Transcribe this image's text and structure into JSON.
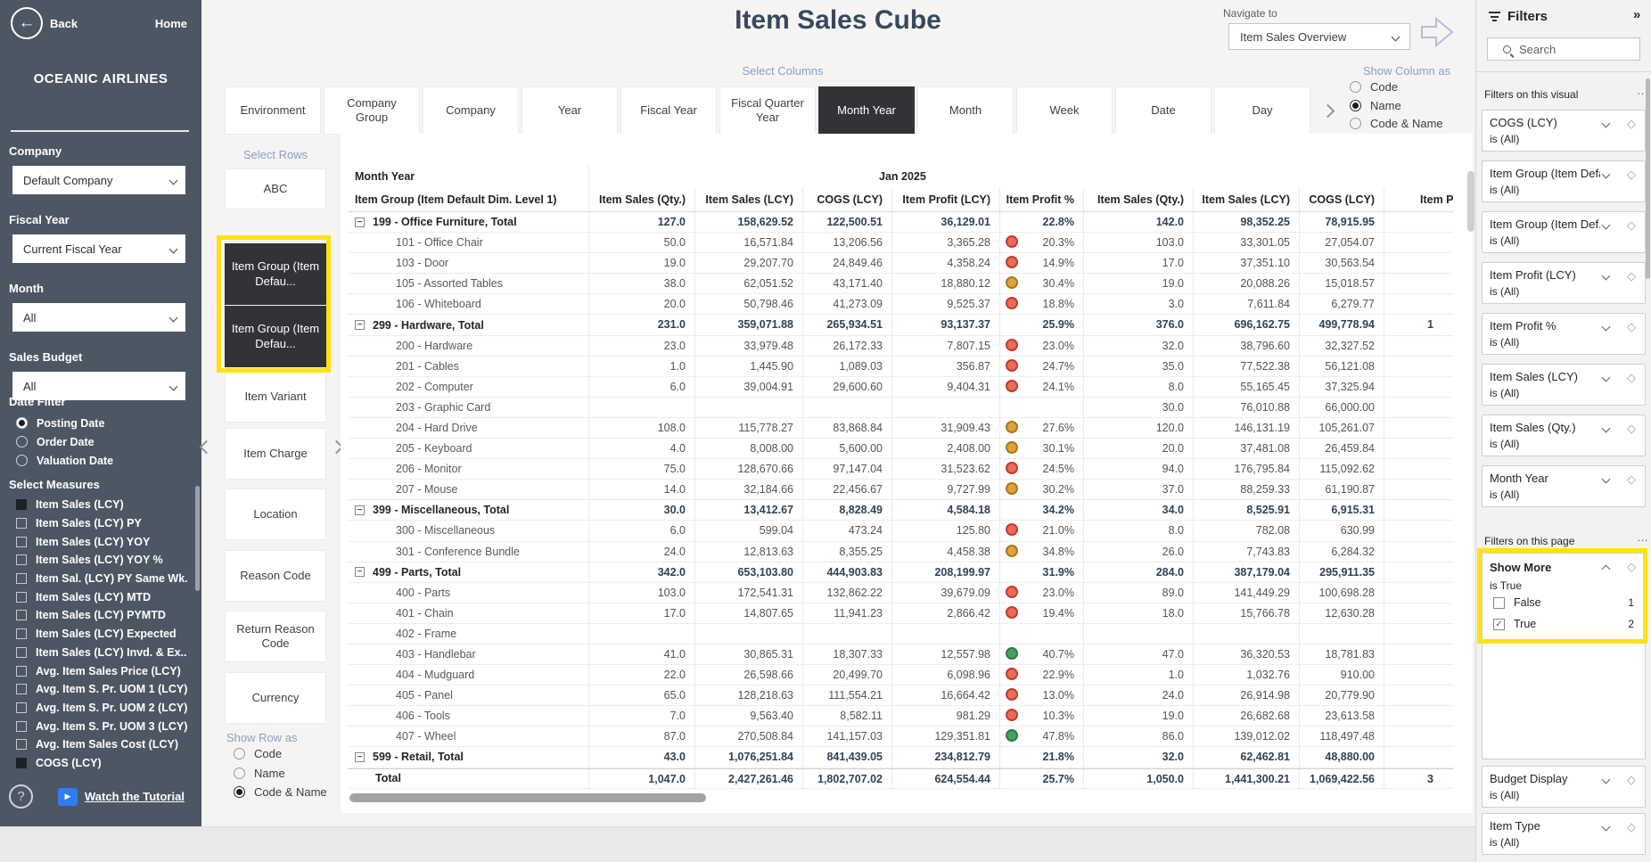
{
  "colors": {
    "sidebar_bg": "#4d5663",
    "selected_tile_bg": "#323336",
    "highlight_yellow": "#ffe115",
    "kpi_red": "#ec6a58",
    "kpi_red_border": "#c23c2b",
    "kpi_amber": "#dfa33d",
    "kpi_amber_border": "#a87a16",
    "kpi_green": "#47a35c",
    "kpi_green_border": "#2e7d43"
  },
  "sidebar": {
    "back_label": "Back",
    "home_label": "Home",
    "company_name": "OCEANIC AIRLINES",
    "filters": [
      {
        "label": "Company",
        "value": "Default Company"
      },
      {
        "label": "Fiscal Year",
        "value": "Current Fiscal Year"
      },
      {
        "label": "Month",
        "value": "All"
      },
      {
        "label": "Sales Budget",
        "value": "All"
      }
    ],
    "date_filter": {
      "label": "Date Filter",
      "options": [
        {
          "label": "Posting Date",
          "selected": true
        },
        {
          "label": "Order Date",
          "selected": false
        },
        {
          "label": "Valuation Date",
          "selected": false
        }
      ]
    },
    "measures": {
      "label": "Select Measures",
      "items": [
        {
          "label": "Item Sales (LCY)",
          "checked": true
        },
        {
          "label": "Item Sales (LCY) PY",
          "checked": false
        },
        {
          "label": "Item Sales (LCY) YOY",
          "checked": false
        },
        {
          "label": "Item Sales (LCY) YOY %",
          "checked": false
        },
        {
          "label": "Item Sal. (LCY) PY Same Wk.",
          "checked": false
        },
        {
          "label": "Item Sales (LCY) MTD",
          "checked": false
        },
        {
          "label": "Item Sales (LCY) PYMTD",
          "checked": false
        },
        {
          "label": "Item Sales (LCY) Expected",
          "checked": false
        },
        {
          "label": "Item Sales (LCY) Invd. & Ex..",
          "checked": false
        },
        {
          "label": "Avg. Item Sales Price (LCY)",
          "checked": false
        },
        {
          "label": "Avg. Item S. Pr. UOM 1 (LCY)",
          "checked": false
        },
        {
          "label": "Avg. Item S. Pr. UOM 2 (LCY)",
          "checked": false
        },
        {
          "label": "Avg. Item S. Pr. UOM 3 (LCY)",
          "checked": false
        },
        {
          "label": "Avg. Item Sales Cost (LCY)",
          "checked": false
        },
        {
          "label": "COGS (LCY)",
          "checked": true
        }
      ]
    },
    "tutorial_label": "Watch the Tutorial"
  },
  "main": {
    "title": "Item Sales Cube",
    "select_columns_label": "Select Columns",
    "navigate": {
      "label": "Navigate to",
      "value": "Item Sales Overview"
    },
    "show_column_as": {
      "label": "Show Column as",
      "options": [
        {
          "label": "Code",
          "selected": false
        },
        {
          "label": "Name",
          "selected": true
        },
        {
          "label": "Code & Name",
          "selected": false
        }
      ]
    },
    "column_tabs": [
      {
        "label": "Environment",
        "selected": false
      },
      {
        "label": "Company Group",
        "selected": false
      },
      {
        "label": "Company",
        "selected": false
      },
      {
        "label": "Year",
        "selected": false
      },
      {
        "label": "Fiscal Year",
        "selected": false
      },
      {
        "label": "Fiscal Quarter Year",
        "selected": false
      },
      {
        "label": "Month Year",
        "selected": true
      },
      {
        "label": "Month",
        "selected": false
      },
      {
        "label": "Week",
        "selected": false
      },
      {
        "label": "Date",
        "selected": false
      },
      {
        "label": "Day",
        "selected": false
      }
    ],
    "select_rows_label": "Select Rows",
    "row_tabs": [
      {
        "label": "ABC",
        "selected": false,
        "highlighted": false
      },
      {
        "label": "Item Group (Item Defau...",
        "selected": true,
        "highlighted": true
      },
      {
        "label": "Item Group (Item Defau...",
        "selected": true,
        "highlighted": true
      },
      {
        "label": "Item Variant",
        "selected": false,
        "highlighted": false
      },
      {
        "label": "Item Charge",
        "selected": false,
        "highlighted": false
      },
      {
        "label": "Location",
        "selected": false,
        "highlighted": false
      },
      {
        "label": "Reason Code",
        "selected": false,
        "highlighted": false
      },
      {
        "label": "Return Reason Code",
        "selected": false,
        "highlighted": false
      },
      {
        "label": "Currency",
        "selected": false,
        "highlighted": false
      }
    ],
    "show_row_as": {
      "label": "Show Row as",
      "options": [
        {
          "label": "Code",
          "selected": false
        },
        {
          "label": "Name",
          "selected": false
        },
        {
          "label": "Code & Name",
          "selected": true
        }
      ]
    },
    "toolbar_icons": [
      "drill-up",
      "drill-down",
      "expand-next-level",
      "expand-all",
      "pin",
      "copy",
      "alert",
      "filter",
      "visual-type",
      "focus-mode",
      "more-options"
    ]
  },
  "table": {
    "row_header": "Month Year",
    "column_group": "Jan 2025",
    "columns": [
      "Item Group (Item Default Dim. Level 1)",
      "Item Sales (Qty.)",
      "Item Sales (LCY)",
      "COGS (LCY)",
      "Item Profit (LCY)",
      "Item Profit %",
      "Item Sales (Qty.)",
      "Item Sales (LCY)",
      "COGS (LCY)",
      "Item P"
    ],
    "rows": [
      {
        "label": "199 - Office Furniture, Total",
        "type": "group",
        "dot": null,
        "values": [
          "127.0",
          "158,629.52",
          "122,500.51",
          "36,129.01",
          "22.8%",
          "142.0",
          "98,352.25",
          "78,915.95",
          ""
        ]
      },
      {
        "label": "101 - Office Chair",
        "type": "item",
        "dot": "red",
        "values": [
          "50.0",
          "16,571.84",
          "13,206.56",
          "3,365.28",
          "20.3%",
          "103.0",
          "33,301.05",
          "27,054.07",
          ""
        ]
      },
      {
        "label": "103 - Door",
        "type": "item",
        "dot": "red",
        "values": [
          "19.0",
          "29,207.70",
          "24,849.46",
          "4,358.24",
          "14.9%",
          "17.0",
          "37,351.10",
          "30,563.54",
          ""
        ]
      },
      {
        "label": "105 - Assorted Tables",
        "type": "item",
        "dot": "amber",
        "values": [
          "38.0",
          "62,051.52",
          "43,171.40",
          "18,880.12",
          "30.4%",
          "19.0",
          "20,088.26",
          "15,018.57",
          ""
        ]
      },
      {
        "label": "106 - Whiteboard",
        "type": "item",
        "dot": "red",
        "values": [
          "20.0",
          "50,798.46",
          "41,273.09",
          "9,525.37",
          "18.8%",
          "3.0",
          "7,611.84",
          "6,279.77",
          ""
        ]
      },
      {
        "label": "299 - Hardware, Total",
        "type": "group",
        "dot": null,
        "values": [
          "231.0",
          "359,071.88",
          "265,934.51",
          "93,137.37",
          "25.9%",
          "376.0",
          "696,162.75",
          "499,778.94",
          "1"
        ]
      },
      {
        "label": "200 - Hardware",
        "type": "item",
        "dot": "red",
        "values": [
          "23.0",
          "33,979.48",
          "26,172.33",
          "7,807.15",
          "23.0%",
          "32.0",
          "38,796.60",
          "32,327.52",
          ""
        ]
      },
      {
        "label": "201 - Cables",
        "type": "item",
        "dot": "red",
        "values": [
          "1.0",
          "1,445.90",
          "1,089.03",
          "356.87",
          "24.7%",
          "35.0",
          "77,522.38",
          "56,121.08",
          ""
        ]
      },
      {
        "label": "202 - Computer",
        "type": "item",
        "dot": "red",
        "values": [
          "6.0",
          "39,004.91",
          "29,600.60",
          "9,404.31",
          "24.1%",
          "8.0",
          "55,165.45",
          "37,325.94",
          ""
        ]
      },
      {
        "label": "203 - Graphic Card",
        "type": "item",
        "dot": null,
        "values": [
          "",
          "",
          "",
          "",
          "",
          "30.0",
          "76,010.88",
          "66,000.00",
          ""
        ]
      },
      {
        "label": "204 - Hard Drive",
        "type": "item",
        "dot": "amber",
        "values": [
          "108.0",
          "115,778.27",
          "83,868.84",
          "31,909.43",
          "27.6%",
          "120.0",
          "146,131.19",
          "105,261.07",
          ""
        ]
      },
      {
        "label": "205 - Keyboard",
        "type": "item",
        "dot": "amber",
        "values": [
          "4.0",
          "8,008.00",
          "5,600.00",
          "2,408.00",
          "30.1%",
          "20.0",
          "37,481.08",
          "26,459.84",
          ""
        ]
      },
      {
        "label": "206 - Monitor",
        "type": "item",
        "dot": "red",
        "values": [
          "75.0",
          "128,670.66",
          "97,147.04",
          "31,523.62",
          "24.5%",
          "94.0",
          "176,795.84",
          "115,092.62",
          ""
        ]
      },
      {
        "label": "207 - Mouse",
        "type": "item",
        "dot": "amber",
        "values": [
          "14.0",
          "32,184.66",
          "22,456.67",
          "9,727.99",
          "30.2%",
          "37.0",
          "88,259.33",
          "61,190.87",
          ""
        ]
      },
      {
        "label": "399 - Miscellaneous, Total",
        "type": "group",
        "dot": null,
        "values": [
          "30.0",
          "13,412.67",
          "8,828.49",
          "4,584.18",
          "34.2%",
          "34.0",
          "8,525.91",
          "6,915.31",
          ""
        ]
      },
      {
        "label": "300 - Miscellaneous",
        "type": "item",
        "dot": "red",
        "values": [
          "6.0",
          "599.04",
          "473.24",
          "125.80",
          "21.0%",
          "8.0",
          "782.08",
          "630.99",
          ""
        ]
      },
      {
        "label": "301 - Conference Bundle",
        "type": "item",
        "dot": "amber",
        "values": [
          "24.0",
          "12,813.63",
          "8,355.25",
          "4,458.38",
          "34.8%",
          "26.0",
          "7,743.83",
          "6,284.32",
          ""
        ]
      },
      {
        "label": "499 - Parts, Total",
        "type": "group",
        "dot": null,
        "values": [
          "342.0",
          "653,103.80",
          "444,903.83",
          "208,199.97",
          "31.9%",
          "284.0",
          "387,179.04",
          "295,911.35",
          ""
        ]
      },
      {
        "label": "400 - Parts",
        "type": "item",
        "dot": "red",
        "values": [
          "103.0",
          "172,541.31",
          "132,862.22",
          "39,679.09",
          "23.0%",
          "89.0",
          "141,449.29",
          "100,698.28",
          ""
        ]
      },
      {
        "label": "401 - Chain",
        "type": "item",
        "dot": "red",
        "values": [
          "17.0",
          "14,807.65",
          "11,941.23",
          "2,866.42",
          "19.4%",
          "18.0",
          "15,766.78",
          "12,630.28",
          ""
        ]
      },
      {
        "label": "402 - Frame",
        "type": "item",
        "dot": null,
        "values": [
          "",
          "",
          "",
          "",
          "",
          "",
          "",
          "",
          ""
        ]
      },
      {
        "label": "403 - Handlebar",
        "type": "item",
        "dot": "green",
        "values": [
          "41.0",
          "30,865.31",
          "18,307.33",
          "12,557.98",
          "40.7%",
          "47.0",
          "36,320.53",
          "18,781.83",
          ""
        ]
      },
      {
        "label": "404 - Mudguard",
        "type": "item",
        "dot": "red",
        "values": [
          "22.0",
          "26,598.66",
          "20,499.70",
          "6,098.96",
          "22.9%",
          "1.0",
          "1,032.76",
          "910.00",
          ""
        ]
      },
      {
        "label": "405 - Panel",
        "type": "item",
        "dot": "red",
        "values": [
          "65.0",
          "128,218.63",
          "111,554.21",
          "16,664.42",
          "13.0%",
          "24.0",
          "26,914.98",
          "20,779.90",
          ""
        ]
      },
      {
        "label": "406 - Tools",
        "type": "item",
        "dot": "red",
        "values": [
          "7.0",
          "9,563.40",
          "8,582.11",
          "981.29",
          "10.3%",
          "19.0",
          "26,682.68",
          "23,613.58",
          ""
        ]
      },
      {
        "label": "407 - Wheel",
        "type": "item",
        "dot": "green",
        "values": [
          "87.0",
          "270,508.84",
          "141,157.03",
          "129,351.81",
          "47.8%",
          "86.0",
          "139,012.02",
          "118,497.48",
          ""
        ]
      },
      {
        "label": "599 - Retail, Total",
        "type": "group",
        "dot": null,
        "values": [
          "43.0",
          "1,076,251.84",
          "841,439.05",
          "234,812.79",
          "21.8%",
          "32.0",
          "62,462.81",
          "48,880.00",
          ""
        ]
      },
      {
        "label": "Total",
        "type": "grandtotal",
        "dot": null,
        "values": [
          "1,047.0",
          "2,427,261.46",
          "1,802,707.02",
          "624,554.44",
          "25.7%",
          "1,050.0",
          "1,441,300.21",
          "1,069,422.56",
          "3"
        ]
      }
    ]
  },
  "filters_pane": {
    "title": "Filters",
    "search_placeholder": "Search",
    "visual_section": {
      "label": "Filters on this visual",
      "more_label": "...",
      "cards": [
        {
          "name": "COGS (LCY)",
          "state": "is (All)"
        },
        {
          "name": "Item Group (Item Defa...",
          "state": "is (All)"
        },
        {
          "name": "Item Group (Item Def...",
          "state": "is (All)"
        },
        {
          "name": "Item Profit (LCY)",
          "state": "is (All)"
        },
        {
          "name": "Item Profit %",
          "state": "is (All)"
        },
        {
          "name": "Item Sales (LCY)",
          "state": "is (All)"
        },
        {
          "name": "Item Sales (Qty.)",
          "state": "is (All)"
        },
        {
          "name": "Month Year",
          "state": "is (All)"
        }
      ]
    },
    "page_section": {
      "label": "Filters on this page",
      "more_label": "...",
      "show_more": {
        "name": "Show More",
        "state": "is True",
        "options": [
          {
            "label": "False",
            "checked": false,
            "count": "1"
          },
          {
            "label": "True",
            "checked": true,
            "count": "2"
          }
        ]
      },
      "cards": [
        {
          "name": "Budget Display",
          "state": "is (All)"
        },
        {
          "name": "Item Type",
          "state": "is (All)"
        }
      ]
    }
  }
}
